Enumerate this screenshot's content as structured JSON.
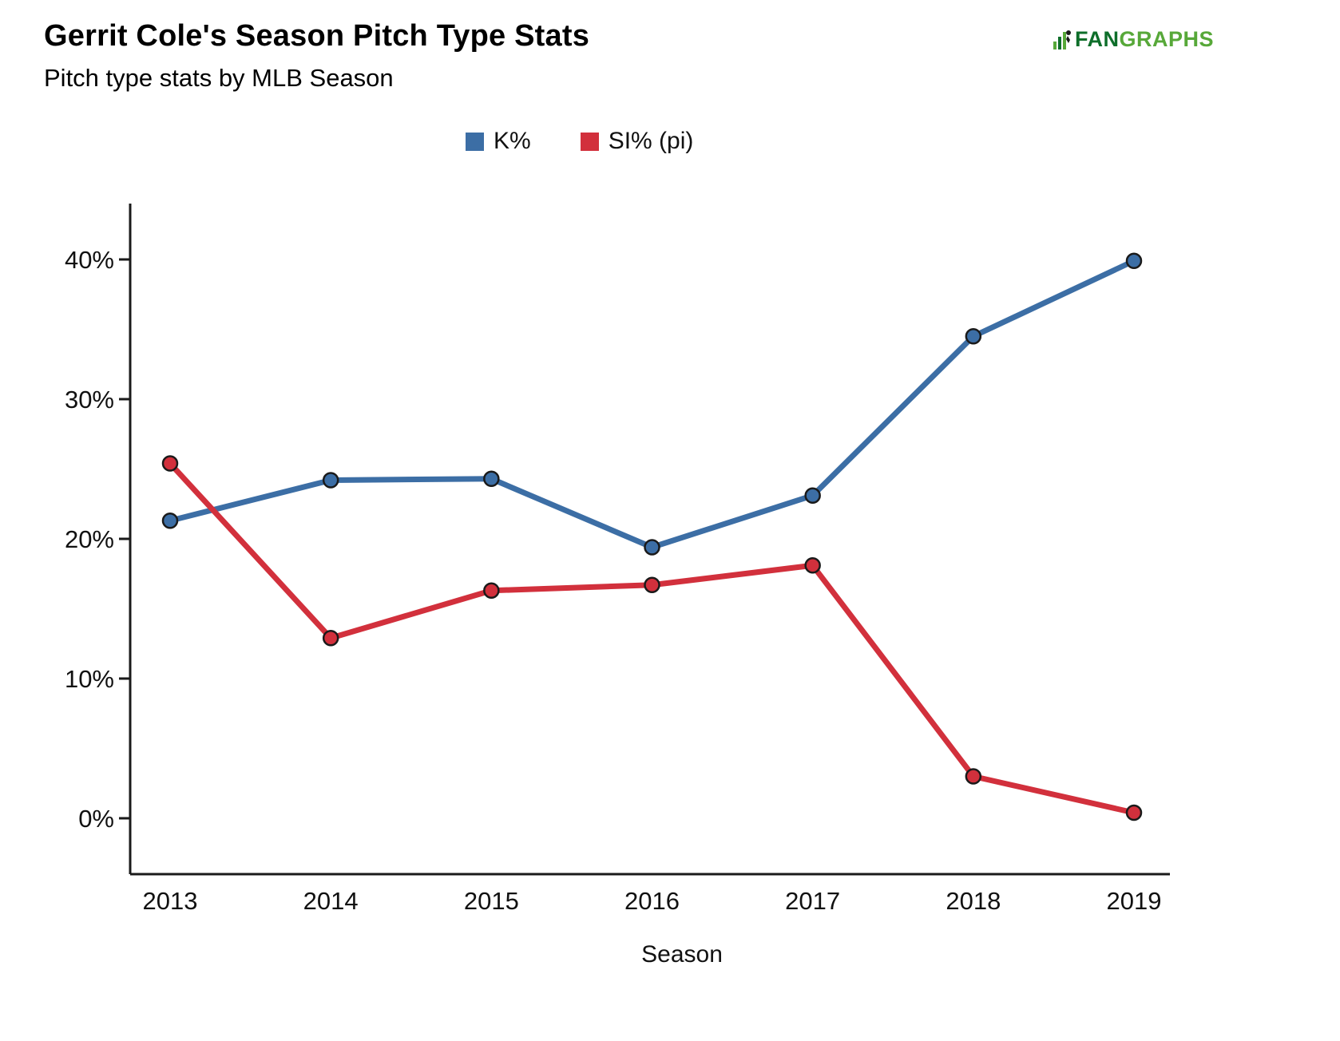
{
  "header": {
    "title": "Gerrit Cole's Season Pitch Type Stats",
    "subtitle": "Pitch type stats by MLB Season",
    "logo": {
      "fan": "FAN",
      "graphs": "GRAPHS"
    }
  },
  "chart_data": {
    "type": "line",
    "title": "Gerrit Cole's Season Pitch Type Stats",
    "subtitle": "Pitch type stats by MLB Season",
    "categories": [
      "2013",
      "2014",
      "2015",
      "2016",
      "2017",
      "2018",
      "2019"
    ],
    "series": [
      {
        "name": "K%",
        "color": "#3c6ea5",
        "values": [
          21.3,
          24.2,
          24.3,
          19.4,
          23.1,
          34.5,
          39.9
        ]
      },
      {
        "name": "SI% (pi)",
        "color": "#d2303c",
        "values": [
          25.4,
          12.9,
          16.3,
          16.7,
          18.1,
          3.0,
          0.4
        ]
      }
    ],
    "xlabel": "Season",
    "ylabel": "",
    "yticks": [
      0,
      10,
      20,
      30,
      40
    ],
    "ytick_labels": [
      "0%",
      "10%",
      "20%",
      "30%",
      "40%"
    ],
    "ylim": [
      -4,
      44
    ],
    "grid": false,
    "legend_position": "top-center"
  },
  "colors": {
    "axis": "#1a1a1a",
    "marker_outline": "#1a1a1a",
    "text": "#111111"
  }
}
